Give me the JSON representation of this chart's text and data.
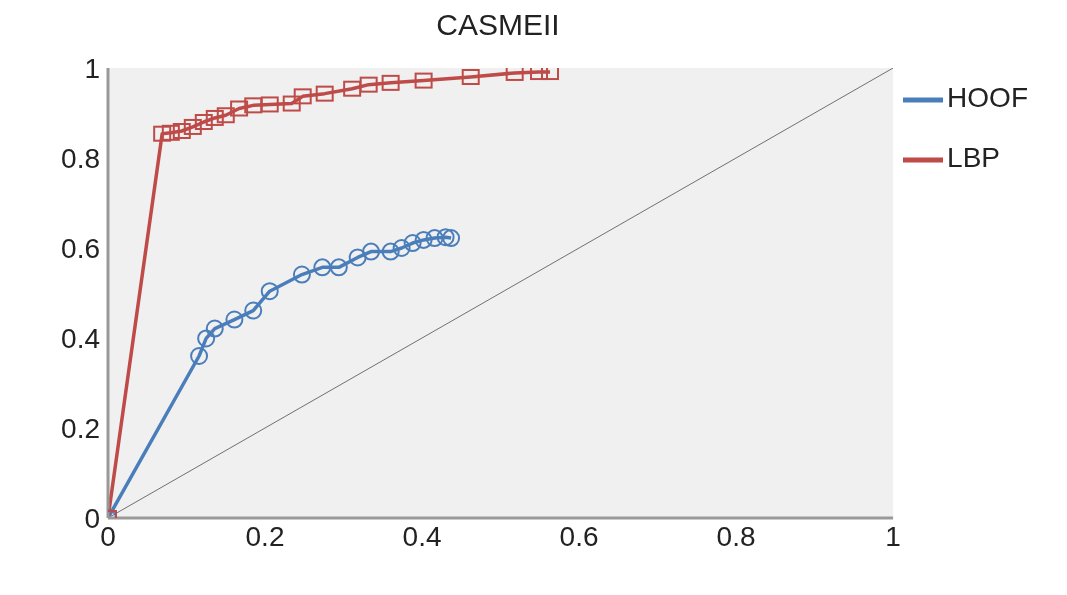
{
  "chart_data": {
    "type": "line",
    "title": "CASMEII",
    "xlim": [
      0,
      1
    ],
    "xticks": [
      0,
      0.2,
      0.4,
      0.6,
      0.8,
      1
    ],
    "ylim": [
      0,
      1
    ],
    "yticks": [
      0,
      0.2,
      0.4,
      0.6,
      0.8,
      1
    ],
    "grid": false,
    "legend": "right",
    "series": [
      {
        "name": "HOOF",
        "color": "#4a7ebb",
        "marker": "circle",
        "x": [
          0,
          0.116,
          0.125,
          0.136,
          0.161,
          0.185,
          0.206,
          0.247,
          0.273,
          0.294,
          0.318,
          0.335,
          0.36,
          0.374,
          0.388,
          0.402,
          0.416,
          0.43,
          0.437
        ],
        "values": [
          0,
          0.36,
          0.399,
          0.421,
          0.441,
          0.461,
          0.504,
          0.541,
          0.557,
          0.557,
          0.579,
          0.592,
          0.592,
          0.6,
          0.611,
          0.618,
          0.622,
          0.624,
          0.622
        ]
      },
      {
        "name": "LBP",
        "color": "#be4b48",
        "marker": "square",
        "x": [
          0,
          0.069,
          0.08,
          0.094,
          0.108,
          0.122,
          0.136,
          0.15,
          0.167,
          0.185,
          0.206,
          0.234,
          0.248,
          0.276,
          0.311,
          0.332,
          0.36,
          0.402,
          0.462,
          0.518,
          0.549,
          0.563
        ],
        "values": [
          0,
          0.854,
          0.856,
          0.86,
          0.869,
          0.88,
          0.889,
          0.895,
          0.91,
          0.917,
          0.919,
          0.921,
          0.937,
          0.943,
          0.954,
          0.963,
          0.967,
          0.972,
          0.98,
          0.989,
          0.991,
          0.991
        ]
      },
      {
        "color": "#707070",
        "marker": "none",
        "x": [
          0,
          1
        ],
        "values": [
          0,
          1
        ]
      }
    ]
  }
}
